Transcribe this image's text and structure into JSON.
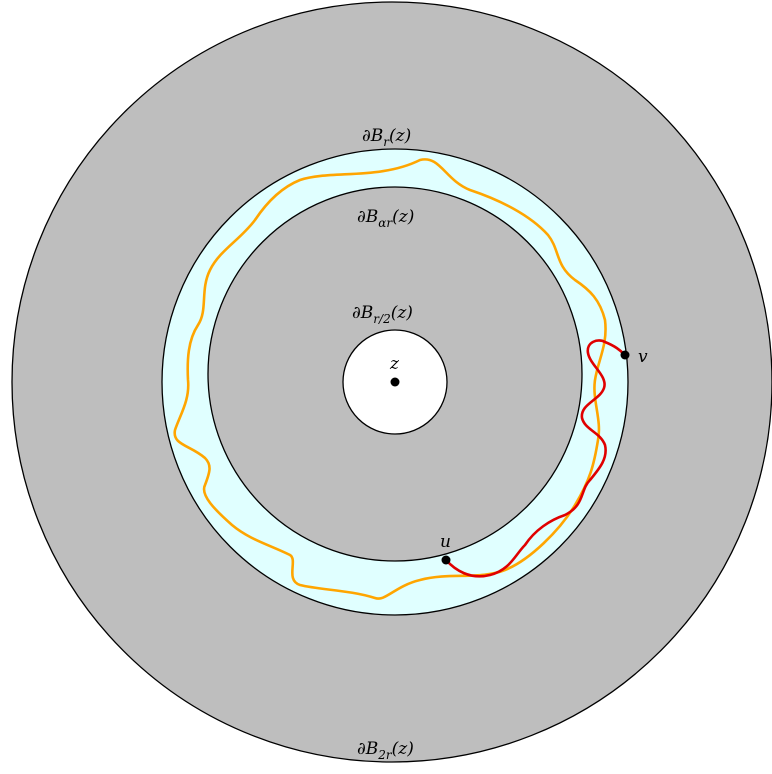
{
  "labels": {
    "boundary_2r": {
      "main": "∂B",
      "sub": "2r",
      "arg": "(z)"
    },
    "boundary_r": {
      "main": "∂B",
      "sub": "r",
      "arg": "(z)"
    },
    "boundary_alpha_r": {
      "main": "∂B",
      "sub": "αr",
      "arg": "(z)"
    },
    "boundary_half_r": {
      "main": "∂B",
      "sub": "r/2",
      "arg": "(z)"
    },
    "center": "z",
    "point_u": "u",
    "point_v": "v"
  },
  "colors": {
    "outer_annulus": "#bebebe",
    "middle_annulus": "#e0ffff",
    "inner_disk": "#bebebe",
    "center_disk": "#ffffff",
    "orange_curve": "#ffa500",
    "red_curve": "#e00000",
    "stroke": "#000000"
  }
}
